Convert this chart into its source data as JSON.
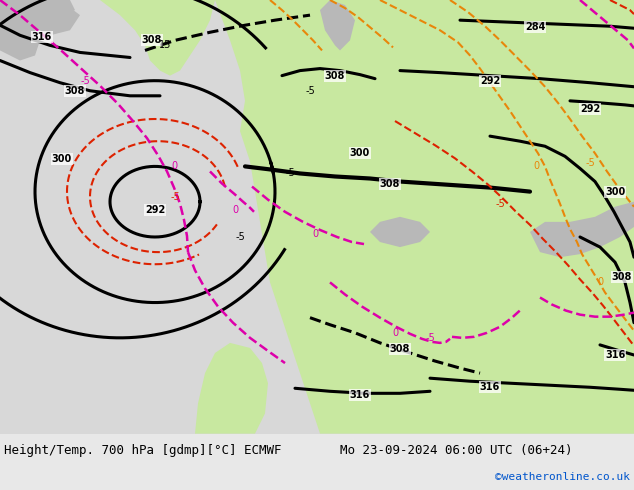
{
  "title_left": "Height/Temp. 700 hPa [gdmp][°C] ECMWF",
  "title_right": "Mo 23-09-2024 06:00 UTC (06+24)",
  "copyright": "©weatheronline.co.uk",
  "fig_width": 6.34,
  "fig_height": 4.9,
  "dpi": 100,
  "ocean_color": "#d8d8d8",
  "land_green": "#c8e8a0",
  "land_gray": "#b8b8b8",
  "footer_bg": "#e8e8e8",
  "text_color_black": "#000000",
  "text_color_blue": "#0055cc",
  "font_size_title": 9,
  "font_size_copyright": 8
}
